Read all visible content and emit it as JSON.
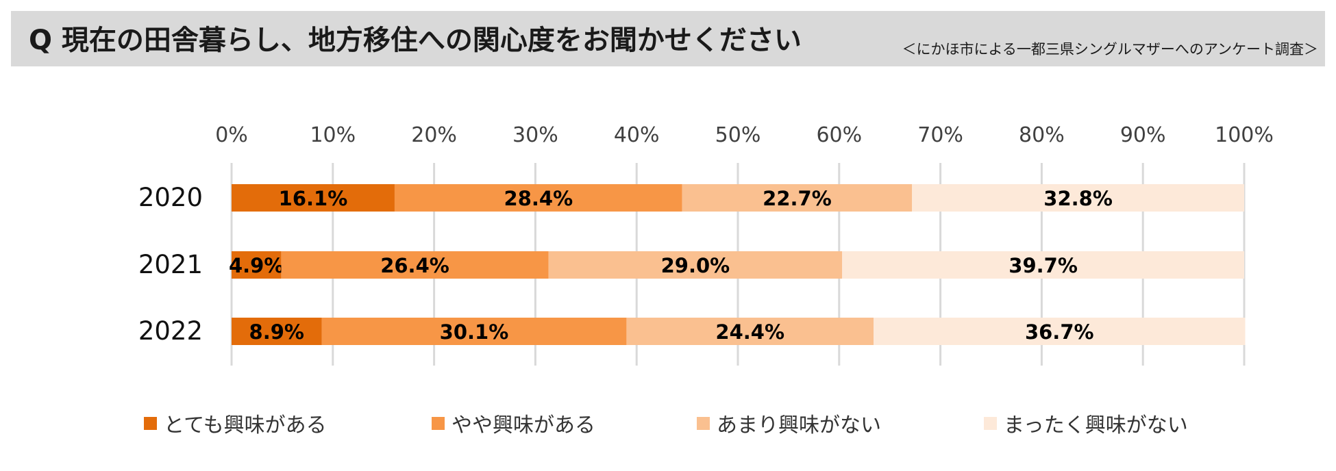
{
  "header": {
    "title": "Q 現在の田舎暮らし、地方移住への関心度をお聞かせください",
    "subtitle": "＜にかほ市による一都三県シングルマザーへのアンケート調査＞"
  },
  "chart_data": {
    "type": "bar",
    "orientation": "horizontal",
    "stacked": "100%",
    "categories": [
      "2020",
      "2021",
      "2022"
    ],
    "xlim": [
      0,
      100
    ],
    "x_ticks": [
      "0%",
      "10%",
      "20%",
      "30%",
      "40%",
      "50%",
      "60%",
      "70%",
      "80%",
      "90%",
      "100%"
    ],
    "grid": true,
    "legend_position": "bottom",
    "series": [
      {
        "name": "とても興味がある",
        "color": "#e36c0a",
        "values": [
          16.1,
          4.9,
          8.9
        ],
        "labels": [
          "16.1%",
          "4.9%",
          "8.9%"
        ]
      },
      {
        "name": "やや興味がある",
        "color": "#f79646",
        "values": [
          28.4,
          26.4,
          30.1
        ],
        "labels": [
          "28.4%",
          "26.4%",
          "30.1%"
        ]
      },
      {
        "name": "あまり興味がない",
        "color": "#fac090",
        "values": [
          22.7,
          29.0,
          24.4
        ],
        "labels": [
          "22.7%",
          "29.0%",
          "24.4%"
        ]
      },
      {
        "name": "まったく興味がない",
        "color": "#fde9d9",
        "values": [
          32.8,
          39.7,
          36.7
        ],
        "labels": [
          "32.8%",
          "39.7%",
          "36.7%"
        ]
      }
    ]
  }
}
